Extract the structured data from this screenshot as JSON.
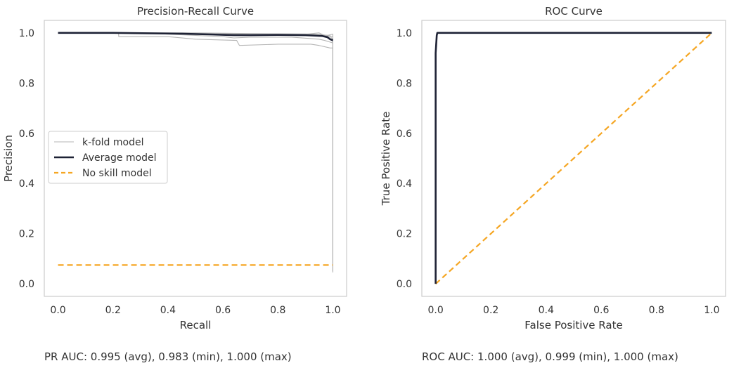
{
  "colors": {
    "kfold": "#b5b5b5",
    "average": "#1e2235",
    "no_skill": "#f5a623",
    "frame": "#cccccc",
    "text": "#333333"
  },
  "chart_data": [
    {
      "type": "line",
      "title": "Precision-Recall Curve",
      "xlabel": "Recall",
      "ylabel": "Precision",
      "xlim": [
        -0.05,
        1.05
      ],
      "ylim": [
        -0.05,
        1.05
      ],
      "xticks": [
        0.0,
        0.2,
        0.4,
        0.6,
        0.8,
        1.0
      ],
      "xtick_labels": [
        "0.0",
        "0.2",
        "0.4",
        "0.6",
        "0.8",
        "1.0"
      ],
      "yticks": [
        0.0,
        0.2,
        0.4,
        0.6,
        0.8,
        1.0
      ],
      "ytick_labels": [
        "0.0",
        "0.2",
        "0.4",
        "0.6",
        "0.8",
        "1.0"
      ],
      "grid": false,
      "legend_position": "center-left",
      "legend": [
        "k-fold model",
        "Average model",
        "No skill model"
      ],
      "series": [
        {
          "name": "k-fold model",
          "style": "thin-grey",
          "points": [
            [
              0.0,
              1.0
            ],
            [
              0.22,
              1.0
            ],
            [
              0.45,
              0.997
            ],
            [
              0.6,
              0.995
            ],
            [
              0.7,
              0.993
            ],
            [
              0.8,
              0.994
            ],
            [
              0.95,
              0.993
            ],
            [
              0.985,
              0.99
            ],
            [
              1.0,
              0.985
            ],
            [
              1.0,
              0.05
            ]
          ]
        },
        {
          "name": "k-fold model",
          "style": "thin-grey",
          "points": [
            [
              0.0,
              1.0
            ],
            [
              0.22,
              1.0
            ],
            [
              0.221,
              0.985
            ],
            [
              0.4,
              0.985
            ],
            [
              0.5,
              0.975
            ],
            [
              0.65,
              0.97
            ],
            [
              0.66,
              0.95
            ],
            [
              0.8,
              0.955
            ],
            [
              0.92,
              0.955
            ],
            [
              0.95,
              0.95
            ],
            [
              0.99,
              0.94
            ],
            [
              1.0,
              0.94
            ],
            [
              1.0,
              0.045
            ]
          ]
        },
        {
          "name": "k-fold model",
          "style": "thin-grey",
          "points": [
            [
              0.0,
              1.0
            ],
            [
              0.3,
              1.0
            ],
            [
              0.5,
              0.99
            ],
            [
              0.6,
              0.985
            ],
            [
              0.64,
              0.98
            ],
            [
              0.7,
              0.983
            ],
            [
              0.85,
              0.983
            ],
            [
              0.95,
              0.975
            ],
            [
              0.97,
              0.97
            ],
            [
              1.0,
              0.96
            ],
            [
              1.0,
              0.05
            ]
          ]
        },
        {
          "name": "k-fold model",
          "style": "thin-grey",
          "points": [
            [
              0.0,
              1.0
            ],
            [
              0.5,
              1.0
            ],
            [
              0.9,
              0.995
            ],
            [
              0.95,
              1.0
            ],
            [
              0.97,
              0.99
            ],
            [
              0.99,
              0.985
            ],
            [
              1.0,
              0.975
            ],
            [
              1.0,
              0.05
            ]
          ]
        },
        {
          "name": "k-fold model",
          "style": "thin-grey",
          "points": [
            [
              0.0,
              1.0
            ],
            [
              0.6,
              0.997
            ],
            [
              0.9,
              0.996
            ],
            [
              0.96,
              0.993
            ],
            [
              0.98,
              0.99
            ],
            [
              1.0,
              0.995
            ],
            [
              1.0,
              0.05
            ]
          ]
        },
        {
          "name": "Average model",
          "style": "thick-navy",
          "points": [
            [
              0.0,
              1.0
            ],
            [
              0.2,
              1.0
            ],
            [
              0.45,
              0.997
            ],
            [
              0.55,
              0.994
            ],
            [
              0.64,
              0.991
            ],
            [
              0.7,
              0.991
            ],
            [
              0.8,
              0.992
            ],
            [
              0.9,
              0.991
            ],
            [
              0.96,
              0.988
            ],
            [
              0.98,
              0.983
            ],
            [
              0.99,
              0.975
            ],
            [
              1.0,
              0.97
            ]
          ]
        },
        {
          "name": "No skill model",
          "style": "dashed-orange",
          "points": [
            [
              0.0,
              0.075
            ],
            [
              1.0,
              0.075
            ]
          ]
        }
      ],
      "summary": "PR AUC: 0.995 (avg), 0.983 (min), 1.000 (max)"
    },
    {
      "type": "line",
      "title": "ROC Curve",
      "xlabel": "False Positive Rate",
      "ylabel": "True Positive Rate",
      "xlim": [
        -0.05,
        1.05
      ],
      "ylim": [
        -0.05,
        1.05
      ],
      "xticks": [
        0.0,
        0.2,
        0.4,
        0.6,
        0.8,
        1.0
      ],
      "xtick_labels": [
        "0.0",
        "0.2",
        "0.4",
        "0.6",
        "0.8",
        "1.0"
      ],
      "yticks": [
        0.0,
        0.2,
        0.4,
        0.6,
        0.8,
        1.0
      ],
      "ytick_labels": [
        "0.0",
        "0.2",
        "0.4",
        "0.6",
        "0.8",
        "1.0"
      ],
      "grid": false,
      "series": [
        {
          "name": "k-fold model",
          "style": "thin-grey",
          "points": [
            [
              0.0,
              0.0
            ],
            [
              0.0,
              0.95
            ],
            [
              0.004,
              1.0
            ],
            [
              1.0,
              1.0
            ]
          ]
        },
        {
          "name": "Average model",
          "style": "thick-navy",
          "points": [
            [
              0.0,
              0.0
            ],
            [
              0.0,
              0.92
            ],
            [
              0.004,
              0.99
            ],
            [
              0.006,
              1.0
            ],
            [
              1.0,
              1.0
            ]
          ]
        },
        {
          "name": "No skill model",
          "style": "dashed-orange",
          "points": [
            [
              0.0,
              0.0
            ],
            [
              1.0,
              1.0
            ]
          ]
        }
      ],
      "summary": "ROC AUC: 1.000 (avg), 0.999 (min), 1.000 (max)"
    }
  ]
}
